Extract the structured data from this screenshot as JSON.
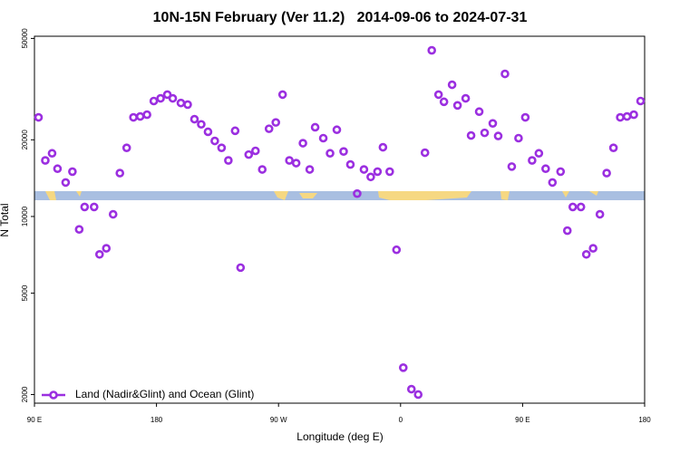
{
  "chart_data": {
    "type": "scatter",
    "title": "10N-15N February (Ver 11.2)   2014-09-06 to 2024-07-31",
    "x_label": "Longitude (deg E)",
    "y_label": "N Total",
    "log_y": true,
    "legend_position": "lower left",
    "xlim": [
      90,
      540
    ],
    "xticks": [
      {
        "value": 90,
        "label": "90 E"
      },
      180,
      {
        "value": 270,
        "label": "90 W"
      },
      {
        "value": 360,
        "label": "0"
      },
      {
        "value": 450,
        "label": "90 E"
      },
      {
        "value": 540,
        "label": "180"
      }
    ],
    "ylim": [
      1850,
      51000
    ],
    "yticks": [
      2000,
      5000,
      10000,
      20000,
      50000
    ],
    "series": [
      {
        "name": "Land (Nadir&Glint) and Ocean (Glint)",
        "color": "#9b2fe0",
        "x": [
          93,
          98,
          103,
          107,
          113,
          118,
          123,
          127,
          134,
          138,
          143,
          148,
          153,
          158,
          163,
          168,
          173,
          178,
          183,
          188,
          192,
          198,
          203,
          208,
          213,
          218,
          223,
          228,
          233,
          238,
          242,
          248,
          253,
          258,
          263,
          268,
          273,
          278,
          283,
          288,
          293,
          297,
          303,
          308,
          313,
          318,
          323,
          328,
          333,
          338,
          343,
          347,
          352,
          357,
          362,
          368,
          373,
          378,
          383,
          388,
          392,
          398,
          402,
          408,
          412,
          418,
          422,
          428,
          432,
          437,
          442,
          447,
          452,
          457,
          462,
          467,
          472,
          478,
          483,
          487,
          493,
          497,
          502,
          507,
          512,
          517,
          522,
          527,
          532,
          537
        ],
        "values": [
          24500,
          16600,
          17700,
          15400,
          13600,
          15000,
          8900,
          10900,
          10900,
          7100,
          7500,
          10200,
          14800,
          18600,
          24500,
          24700,
          25100,
          28400,
          29100,
          30100,
          29100,
          27900,
          27500,
          24100,
          23000,
          21500,
          19800,
          18600,
          16600,
          21700,
          6300,
          17500,
          18100,
          15300,
          22100,
          23400,
          30100,
          16600,
          16200,
          19400,
          15300,
          22400,
          20300,
          17700,
          21900,
          18000,
          16000,
          12300,
          15300,
          14300,
          15000,
          18700,
          15000,
          7400,
          2550,
          2100,
          2000,
          17800,
          44900,
          30100,
          28200,
          32900,
          27300,
          29100,
          20800,
          25800,
          21300,
          23200,
          20700,
          36300,
          15700,
          20300,
          24500,
          16600,
          17700,
          15400,
          13600,
          15000,
          8800,
          10900,
          10900,
          7100,
          7500,
          10200,
          14800,
          18600,
          24500,
          24700,
          25100,
          28400
        ]
      }
    ]
  }
}
